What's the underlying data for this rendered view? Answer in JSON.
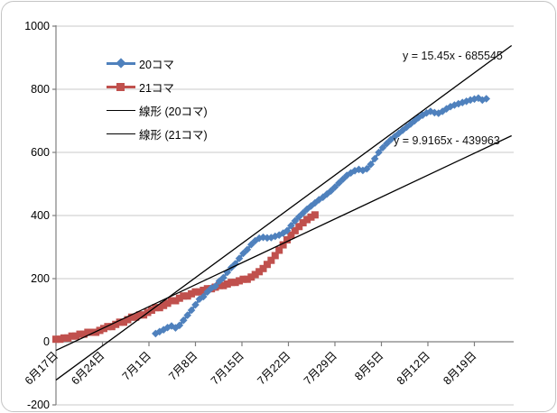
{
  "chart_data": {
    "type": "line",
    "title": "",
    "xlabel": "",
    "ylabel": "",
    "x_axis": {
      "tick_labels": [
        "6月17日",
        "6月24日",
        "7月1日",
        "7月8日",
        "7月15日",
        "7月22日",
        "7月29日",
        "8月5日",
        "8月12日",
        "8月19日"
      ],
      "tick_interval_days": 7,
      "start_year": 2021,
      "start_month": 6,
      "start_day": 17
    },
    "y_axis": {
      "ticks": [
        1000,
        800,
        600,
        400,
        200,
        0,
        -200
      ],
      "min": -200,
      "max": 1000
    },
    "grid": "horizontal",
    "legend_position": "top-left-inside",
    "series": [
      {
        "name": "20コマ",
        "color": "#4F81BD",
        "marker": "diamond",
        "points": [
          [
            15,
            26
          ],
          [
            15.6,
            32
          ],
          [
            16.2,
            38
          ],
          [
            16.8,
            45
          ],
          [
            17.4,
            50
          ],
          [
            18,
            44
          ],
          [
            18.6,
            52
          ],
          [
            19.2,
            68
          ],
          [
            19.8,
            84
          ],
          [
            20.4,
            100
          ],
          [
            21,
            117
          ],
          [
            21.6,
            135
          ],
          [
            22.2,
            143
          ],
          [
            22.8,
            158
          ],
          [
            23.4,
            170
          ],
          [
            24,
            176
          ],
          [
            24.6,
            192
          ],
          [
            25.2,
            203
          ],
          [
            25.8,
            220
          ],
          [
            26.4,
            235
          ],
          [
            27,
            247
          ],
          [
            27.6,
            264
          ],
          [
            28.2,
            280
          ],
          [
            28.8,
            292
          ],
          [
            29.4,
            308
          ],
          [
            30,
            320
          ],
          [
            30.6,
            328
          ],
          [
            31.2,
            331
          ],
          [
            31.8,
            329
          ],
          [
            32.4,
            330
          ],
          [
            33,
            334
          ],
          [
            33.6,
            338
          ],
          [
            34.2,
            344
          ],
          [
            34.8,
            352
          ],
          [
            35.4,
            368
          ],
          [
            36,
            383
          ],
          [
            36.6,
            396
          ],
          [
            37.2,
            408
          ],
          [
            37.8,
            420
          ],
          [
            38.4,
            430
          ],
          [
            39,
            440
          ],
          [
            39.6,
            450
          ],
          [
            40.2,
            458
          ],
          [
            40.8,
            468
          ],
          [
            41.4,
            478
          ],
          [
            42,
            490
          ],
          [
            42.6,
            503
          ],
          [
            43.2,
            515
          ],
          [
            43.8,
            527
          ],
          [
            44.4,
            535
          ],
          [
            45,
            542
          ],
          [
            45.6,
            546
          ],
          [
            46.2,
            543
          ],
          [
            46.8,
            548
          ],
          [
            47.4,
            562
          ],
          [
            48,
            580
          ],
          [
            48.6,
            600
          ],
          [
            49.2,
            615
          ],
          [
            49.8,
            628
          ],
          [
            50.4,
            640
          ],
          [
            51,
            650
          ],
          [
            51.6,
            660
          ],
          [
            52.2,
            670
          ],
          [
            52.8,
            680
          ],
          [
            53.4,
            690
          ],
          [
            54,
            700
          ],
          [
            54.6,
            710
          ],
          [
            55.2,
            718
          ],
          [
            55.8,
            725
          ],
          [
            56.4,
            730
          ],
          [
            57,
            726
          ],
          [
            57.6,
            724
          ],
          [
            58.2,
            730
          ],
          [
            58.8,
            738
          ],
          [
            59.4,
            745
          ],
          [
            60,
            750
          ],
          [
            60.6,
            754
          ],
          [
            61.2,
            758
          ],
          [
            61.8,
            762
          ],
          [
            62.4,
            766
          ],
          [
            63,
            769
          ],
          [
            63.6,
            772
          ],
          [
            64.2,
            766
          ],
          [
            64.8,
            770
          ]
        ]
      },
      {
        "name": "21コマ",
        "color": "#C0504D",
        "marker": "square",
        "points": [
          [
            0,
            8
          ],
          [
            0.6,
            8
          ],
          [
            1.2,
            12
          ],
          [
            1.8,
            12
          ],
          [
            2.4,
            18
          ],
          [
            3,
            18
          ],
          [
            3.6,
            24
          ],
          [
            4.2,
            24
          ],
          [
            4.8,
            30
          ],
          [
            5.4,
            30
          ],
          [
            6,
            30
          ],
          [
            6.6,
            36
          ],
          [
            7.2,
            42
          ],
          [
            7.8,
            48
          ],
          [
            8.4,
            48
          ],
          [
            9,
            55
          ],
          [
            9.6,
            62
          ],
          [
            10.2,
            62
          ],
          [
            10.8,
            70
          ],
          [
            11.4,
            78
          ],
          [
            12,
            78
          ],
          [
            12.6,
            85
          ],
          [
            13.2,
            85
          ],
          [
            13.8,
            93
          ],
          [
            14.4,
            100
          ],
          [
            15,
            108
          ],
          [
            15.6,
            108
          ],
          [
            16.2,
            115
          ],
          [
            16.8,
            122
          ],
          [
            17.4,
            130
          ],
          [
            18,
            130
          ],
          [
            18.6,
            138
          ],
          [
            19.2,
            145
          ],
          [
            19.8,
            145
          ],
          [
            20.4,
            152
          ],
          [
            21,
            158
          ],
          [
            21.6,
            158
          ],
          [
            22.2,
            163
          ],
          [
            22.8,
            168
          ],
          [
            23.4,
            168
          ],
          [
            24,
            173
          ],
          [
            24.6,
            178
          ],
          [
            25.2,
            178
          ],
          [
            25.8,
            183
          ],
          [
            26.4,
            188
          ],
          [
            27,
            188
          ],
          [
            27.6,
            193
          ],
          [
            28.2,
            198
          ],
          [
            28.8,
            198
          ],
          [
            29.4,
            205
          ],
          [
            30,
            213
          ],
          [
            30.6,
            222
          ],
          [
            31.2,
            232
          ],
          [
            31.8,
            245
          ],
          [
            32.4,
            258
          ],
          [
            33,
            273
          ],
          [
            33.6,
            290
          ],
          [
            34.2,
            307
          ],
          [
            34.8,
            323
          ],
          [
            35.4,
            338
          ],
          [
            36,
            352
          ],
          [
            36.6,
            365
          ],
          [
            37.2,
            377
          ],
          [
            37.8,
            387
          ],
          [
            38.4,
            395
          ],
          [
            39,
            402
          ]
        ]
      },
      {
        "name": "線形 (20コマ)",
        "type": "trendline",
        "color": "#000000",
        "slope": 15.45,
        "intercept": -685545,
        "equation": "y = 15.45x - 685545"
      },
      {
        "name": "線形 (21コマ)",
        "type": "trendline",
        "color": "#000000",
        "slope": 9.9165,
        "intercept": -439963,
        "equation": "y = 9.9165x - 439963"
      }
    ],
    "colors": {
      "gridline": "#c8c8c8",
      "axis": "#7f7f7f",
      "text": "#000000",
      "trendline": "#000000"
    }
  }
}
